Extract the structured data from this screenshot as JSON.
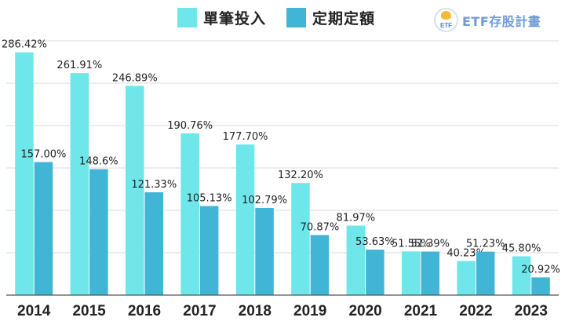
{
  "legend": {
    "series1_label": "單筆投入",
    "series2_label": "定期定額"
  },
  "brand": {
    "logo_text": "ETF",
    "name": "ETF存股計畫"
  },
  "colors": {
    "series1": "#6ee6ea",
    "series2": "#41b5d6",
    "grid": "#d9d9d9",
    "axis": "#555555",
    "text": "#222222"
  },
  "chart_data": {
    "type": "bar",
    "categories": [
      "2014",
      "2015",
      "2016",
      "2017",
      "2018",
      "2019",
      "2020",
      "2021",
      "2022",
      "2023"
    ],
    "series": [
      {
        "name": "單筆投入",
        "values": [
          286.42,
          261.91,
          246.89,
          190.76,
          177.7,
          132.2,
          81.97,
          51.55,
          40.23,
          45.8
        ],
        "labels": [
          "286.42%",
          "261.91%",
          "246.89%",
          "190.76%",
          "177.70%",
          "132.20%",
          "81.97%",
          "51.55%",
          "40.23%",
          "45.80%"
        ]
      },
      {
        "name": "定期定額",
        "values": [
          157.0,
          148.6,
          121.33,
          105.13,
          102.79,
          70.87,
          53.63,
          51.39,
          51.23,
          20.92
        ],
        "labels": [
          "157.00%",
          "148.6%",
          "121.33%",
          "105.13%",
          "102.79%",
          "70.87%",
          "53.63%",
          "51.39%",
          "51.23%",
          "20.92%"
        ]
      }
    ],
    "ylim": [
      0,
      300
    ],
    "grid": true,
    "legend_position": "top-center"
  }
}
